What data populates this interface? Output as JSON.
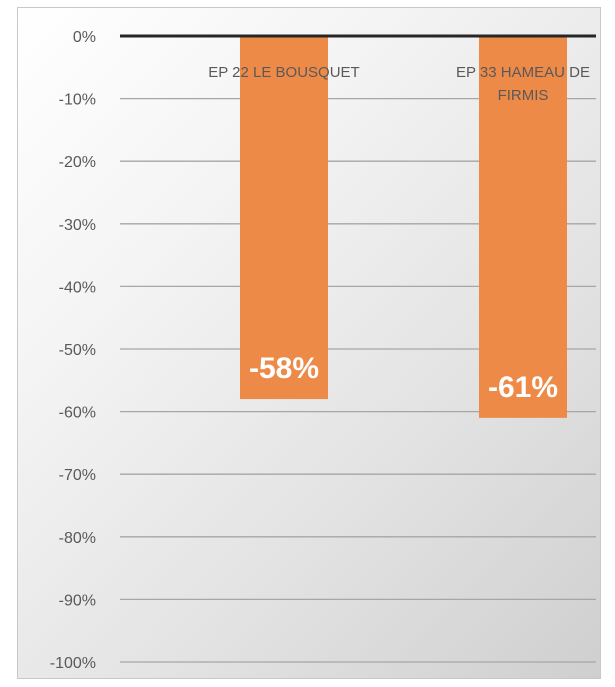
{
  "chart_data": {
    "type": "bar",
    "categories": [
      "EP 22 LE BOUSQUET",
      "EP 33 HAMEAU DE FIRMIS"
    ],
    "category_lines": [
      [
        "EP 22 LE BOUSQUET"
      ],
      [
        "EP 33 HAMEAU DE",
        "FIRMIS"
      ]
    ],
    "values": [
      -58,
      -61
    ],
    "data_labels": [
      "-58%",
      "-61%"
    ],
    "ylim": [
      -100,
      0
    ],
    "y_ticks": [
      0,
      -10,
      -20,
      -30,
      -40,
      -50,
      -60,
      -70,
      -80,
      -90,
      -100
    ],
    "y_tick_labels": [
      "0%",
      "-10%",
      "-20%",
      "-30%",
      "-40%",
      "-50%",
      "-60%",
      "-70%",
      "-80%",
      "-90%",
      "-100%"
    ],
    "grid": true,
    "legend": "none",
    "title": "",
    "xlabel": "",
    "ylabel": "",
    "colors": {
      "bar": "#ee8a48",
      "grid": "#a6a6a6",
      "zero_axis": "#262626",
      "tick_text": "#595959",
      "data_label": "#ffffff"
    }
  }
}
